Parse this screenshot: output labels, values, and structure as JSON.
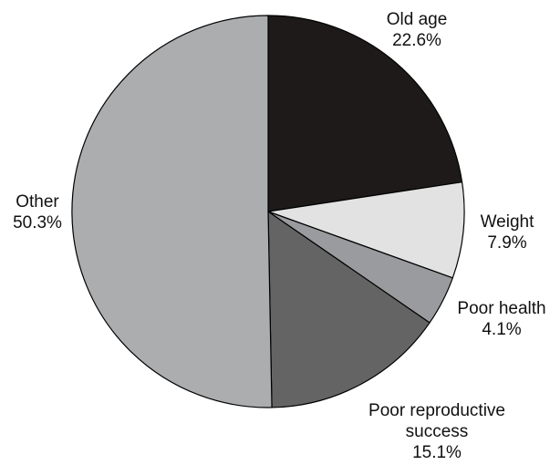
{
  "chart_data": {
    "type": "pie",
    "title": "",
    "start_angle_deg": 0,
    "direction": "clockwise",
    "border_color": "#000000",
    "slices": [
      {
        "label": "Old age",
        "value": 22.6,
        "value_label": "22.6%",
        "color": "#1e1a1a"
      },
      {
        "label": "Weight",
        "value": 7.9,
        "value_label": "7.9%",
        "color": "#e2e2e2"
      },
      {
        "label": "Poor health",
        "value": 4.1,
        "value_label": "4.1%",
        "color": "#9a9b9e"
      },
      {
        "label": "Poor reproductive success",
        "value": 15.1,
        "value_label": "15.1%",
        "color": "#646464"
      },
      {
        "label": "Other",
        "value": 50.3,
        "value_label": "50.3%",
        "color": "#acadaf"
      }
    ]
  }
}
